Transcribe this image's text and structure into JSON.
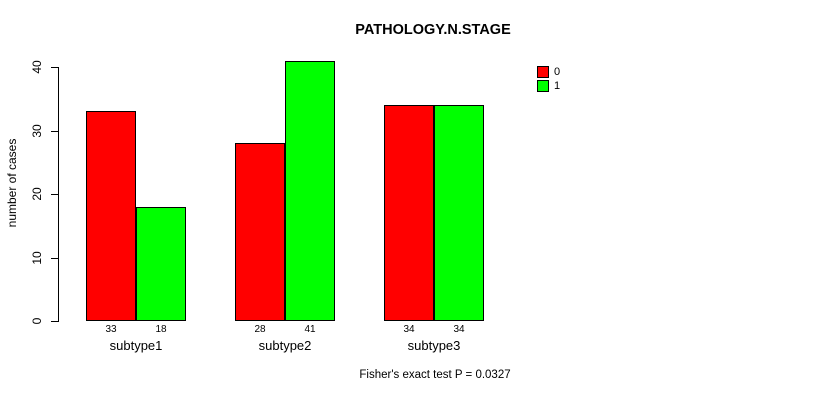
{
  "chart_data": {
    "type": "bar",
    "title": "PATHOLOGY.N.STAGE",
    "ylabel": "number of cases",
    "xlabel": "",
    "subtitle": "Fisher's exact test P = 0.0327",
    "categories": [
      "subtype1",
      "subtype2",
      "subtype3"
    ],
    "series": [
      {
        "name": "0",
        "color": "#FF0000",
        "values": [
          33,
          28,
          34
        ]
      },
      {
        "name": "1",
        "color": "#00FF00",
        "values": [
          18,
          41,
          34
        ]
      }
    ],
    "value_labels_shown": true,
    "yticks": [
      0,
      10,
      20,
      30,
      40
    ],
    "ylim": [
      0,
      40
    ],
    "grid": false,
    "legend": {
      "position": "top-right",
      "entries": [
        {
          "label": "0",
          "color": "#FF0000"
        },
        {
          "label": "1",
          "color": "#00FF00"
        }
      ]
    }
  },
  "colors": {
    "background": "#FFFFFF",
    "axis": "#000000",
    "bar_border": "#000000",
    "text": "#000000"
  }
}
